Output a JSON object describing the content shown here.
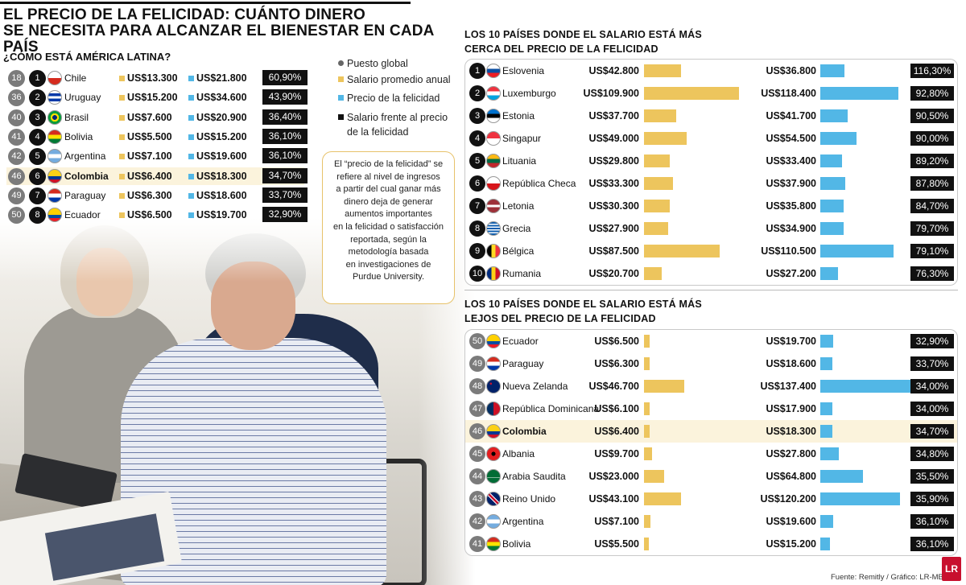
{
  "header": {
    "title_line1": "EL PRECIO DE LA FELICIDAD: CUÁNTO DINERO",
    "title_line2": "SE NECESITA PARA ALCANZAR EL BIENESTAR EN CADA PAÍS",
    "subtitle": "¿CÓMO ESTÁ AMÉRICA LATINA?"
  },
  "legend": {
    "global": "Puesto global",
    "salary": "Salario promedio anual",
    "price": "Precio de la felicidad",
    "ratio_line1": "Salario frente al precio",
    "ratio_line2": "de la felicidad"
  },
  "note": {
    "l1": "El “precio de la felicidad” se",
    "l2": "refiere al nivel de ingresos",
    "l3": "a partir del cual ganar más",
    "l4": "dinero deja de generar",
    "l5": "aumentos importantes",
    "l6": "en la felicidad o satisfacción",
    "l7": "reportada, según la",
    "l8": "metodología basada",
    "l9": "en investigaciones de",
    "l10": "Purdue University."
  },
  "colors": {
    "salary": "#edc55d",
    "price": "#52b7e6",
    "highlight": "#fbf3dc"
  },
  "latam": [
    {
      "global": "18",
      "rank": "1",
      "country": "Chile",
      "salary": "US$13.300",
      "price": "US$21.800",
      "ratio": "60,90%",
      "flag": "chile"
    },
    {
      "global": "36",
      "rank": "2",
      "country": "Uruguay",
      "salary": "US$15.200",
      "price": "US$34.600",
      "ratio": "43,90%",
      "flag": "uruguay"
    },
    {
      "global": "40",
      "rank": "3",
      "country": "Brasil",
      "salary": "US$7.600",
      "price": "US$20.900",
      "ratio": "36,40%",
      "flag": "brasil"
    },
    {
      "global": "41",
      "rank": "4",
      "country": "Bolivia",
      "salary": "US$5.500",
      "price": "US$15.200",
      "ratio": "36,10%",
      "flag": "bolivia"
    },
    {
      "global": "42",
      "rank": "5",
      "country": "Argentina",
      "salary": "US$7.100",
      "price": "US$19.600",
      "ratio": "36,10%",
      "flag": "argentina"
    },
    {
      "global": "46",
      "rank": "6",
      "country": "Colombia",
      "salary": "US$6.400",
      "price": "US$18.300",
      "ratio": "34,70%",
      "flag": "colombia",
      "highlight": true
    },
    {
      "global": "49",
      "rank": "7",
      "country": "Paraguay",
      "salary": "US$6.300",
      "price": "US$18.600",
      "ratio": "33,70%",
      "flag": "paraguay"
    },
    {
      "global": "50",
      "rank": "8",
      "country": "Ecuador",
      "salary": "US$6.500",
      "price": "US$19.700",
      "ratio": "32,90%",
      "flag": "ecuador"
    }
  ],
  "top_title_line1": "LOS 10 PAÍSES DONDE EL SALARIO ESTÁ MÁS",
  "top_title_line2": "CERCA DEL PRECIO DE LA FELICIDAD",
  "bottom_title_line1": "LOS 10 PAÍSES DONDE EL SALARIO ESTÁ MÁS",
  "bottom_title_line2": "LEJOS DEL PRECIO DE LA FELICIDAD",
  "source": "Fuente: Remitly / Gráfico: LR-MB",
  "logo": "LR",
  "chart_data": [
    {
      "type": "bar",
      "title": "LOS 10 PAÍSES DONDE EL SALARIO ESTÁ MÁS CERCA DEL PRECIO DE LA FELICIDAD",
      "categories": [
        "Eslovenia",
        "Luxemburgo",
        "Estonia",
        "Singapur",
        "Lituania",
        "República Checa",
        "Letonia",
        "Grecia",
        "Bélgica",
        "Rumania"
      ],
      "ranks": [
        "1",
        "2",
        "3",
        "4",
        "5",
        "6",
        "7",
        "8",
        "9",
        "10"
      ],
      "flags": [
        "eslovenia",
        "luxemburgo",
        "estonia",
        "singapur",
        "lituania",
        "checa",
        "letonia",
        "grecia",
        "belgica",
        "rumania"
      ],
      "series": [
        {
          "name": "Salario promedio anual",
          "values": [
            42800,
            109900,
            37700,
            49000,
            29800,
            33300,
            30300,
            27900,
            87500,
            20700
          ],
          "labels": [
            "US$42.800",
            "US$109.900",
            "US$37.700",
            "US$49.000",
            "US$29.800",
            "US$33.300",
            "US$30.300",
            "US$27.900",
            "US$87.500",
            "US$20.700"
          ]
        },
        {
          "name": "Precio de la felicidad",
          "values": [
            36800,
            118400,
            41700,
            54500,
            33400,
            37900,
            35800,
            34900,
            110500,
            27200
          ],
          "labels": [
            "US$36.800",
            "US$118.400",
            "US$41.700",
            "US$54.500",
            "US$33.400",
            "US$37.900",
            "US$35.800",
            "US$34.900",
            "US$110.500",
            "US$27.200"
          ]
        },
        {
          "name": "Salario frente al precio de la felicidad",
          "values": [
            116.3,
            92.8,
            90.5,
            90.0,
            89.2,
            87.8,
            84.7,
            79.7,
            79.1,
            76.3
          ],
          "labels": [
            "116,30%",
            "92,80%",
            "90,50%",
            "90,00%",
            "89,20%",
            "87,80%",
            "84,70%",
            "79,70%",
            "79,10%",
            "76,30%"
          ]
        }
      ]
    },
    {
      "type": "bar",
      "title": "LOS 10 PAÍSES DONDE EL SALARIO ESTÁ MÁS LEJOS DEL PRECIO DE LA FELICIDAD",
      "categories": [
        "Ecuador",
        "Paraguay",
        "Nueva Zelanda",
        "República Dominicana",
        "Colombia",
        "Albania",
        "Arabia Saudita",
        "Reino Unido",
        "Argentina",
        "Bolivia"
      ],
      "ranks": [
        "50",
        "49",
        "48",
        "47",
        "46",
        "45",
        "44",
        "43",
        "42",
        "41"
      ],
      "flags": [
        "ecuador",
        "paraguay",
        "nuevazelanda",
        "dominicana",
        "colombia",
        "albania",
        "arabia",
        "reinounido",
        "argentina",
        "bolivia"
      ],
      "highlight": "Colombia",
      "series": [
        {
          "name": "Salario promedio anual",
          "values": [
            6500,
            6300,
            46700,
            6100,
            6400,
            9700,
            23000,
            43100,
            7100,
            5500
          ],
          "labels": [
            "US$6.500",
            "US$6.300",
            "US$46.700",
            "US$6.100",
            "US$6.400",
            "US$9.700",
            "US$23.000",
            "US$43.100",
            "US$7.100",
            "US$5.500"
          ]
        },
        {
          "name": "Precio de la felicidad",
          "values": [
            19700,
            18600,
            137400,
            17900,
            18300,
            27800,
            64800,
            120200,
            19600,
            15200
          ],
          "labels": [
            "US$19.700",
            "US$18.600",
            "US$137.400",
            "US$17.900",
            "US$18.300",
            "US$27.800",
            "US$64.800",
            "US$120.200",
            "US$19.600",
            "US$15.200"
          ]
        },
        {
          "name": "Salario frente al precio de la felicidad",
          "values": [
            32.9,
            33.7,
            34.0,
            34.0,
            34.7,
            34.8,
            35.5,
            35.9,
            36.1,
            36.1
          ],
          "labels": [
            "32,90%",
            "33,70%",
            "34,00%",
            "34,00%",
            "34,70%",
            "34,80%",
            "35,50%",
            "35,90%",
            "36,10%",
            "36,10%"
          ]
        }
      ]
    }
  ]
}
